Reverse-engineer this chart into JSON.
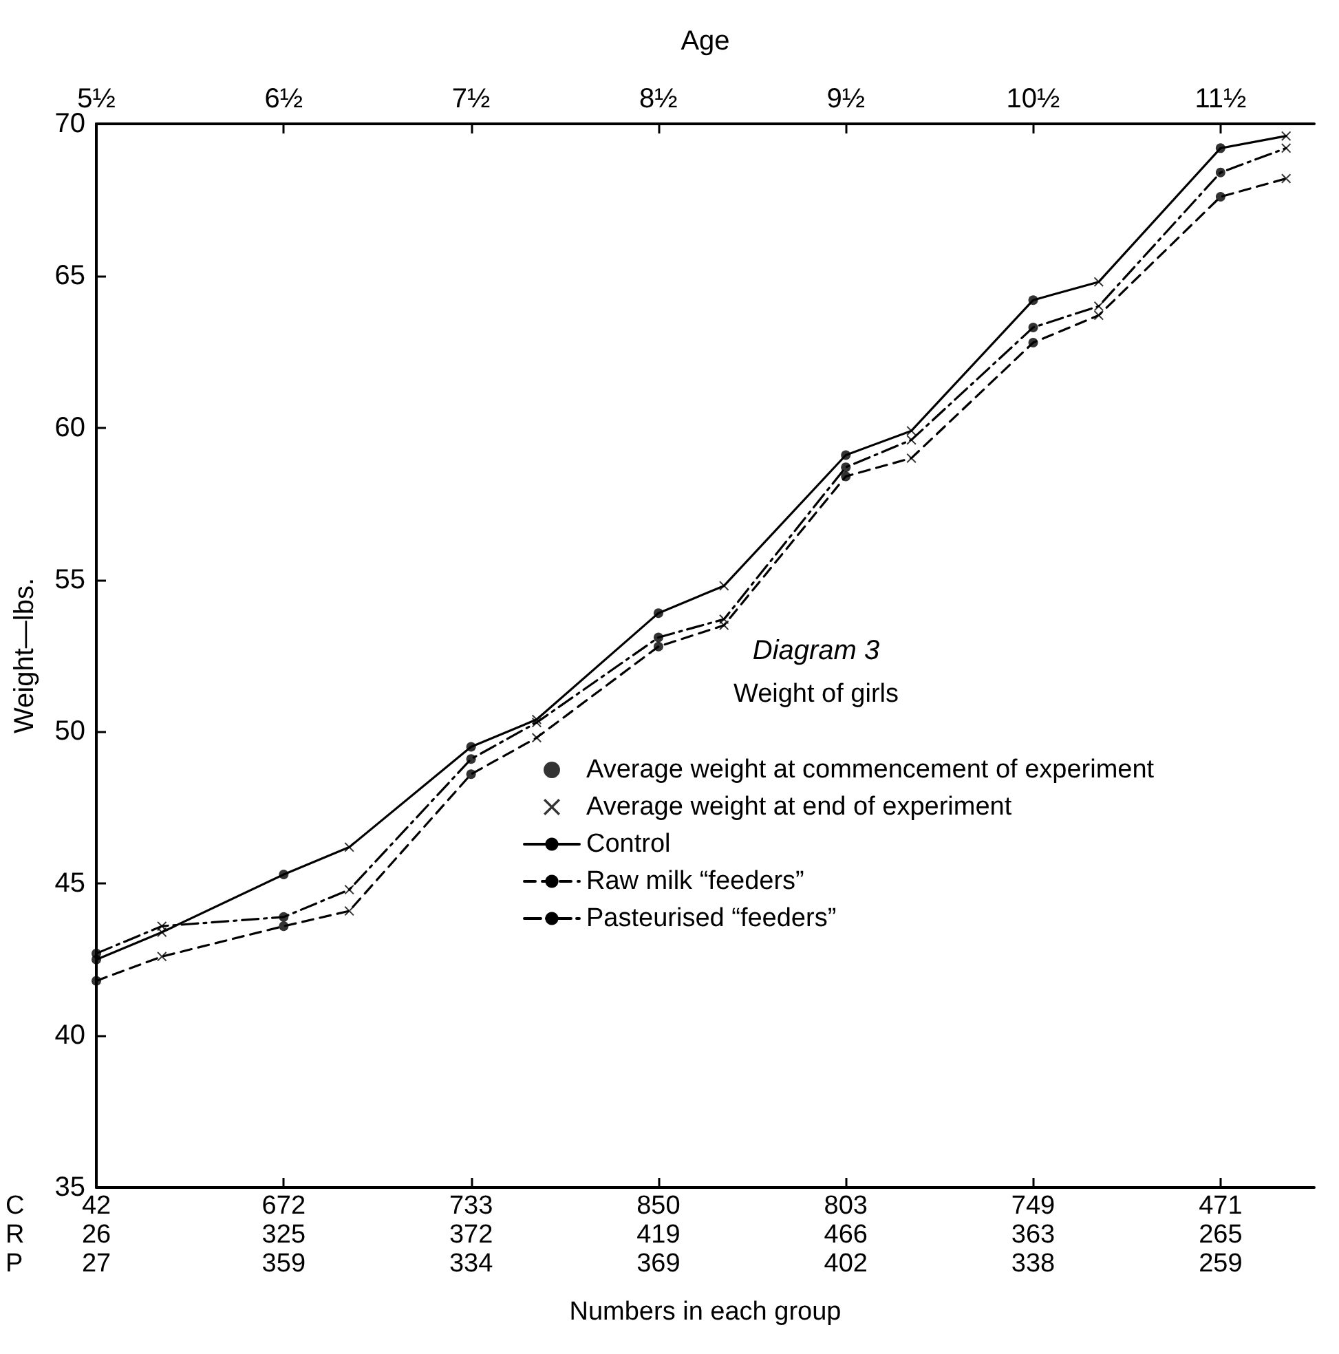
{
  "chart_data": {
    "type": "line",
    "title": "Diagram 3",
    "subtitle": "Weight of girls",
    "xlabel": "Age",
    "ylabel": "Weight—lbs.",
    "xlim": [
      5.5,
      12.0
    ],
    "xticks": [
      {
        "value": 5.5,
        "label": "5½"
      },
      {
        "value": 6.5,
        "label": "6½"
      },
      {
        "value": 7.5,
        "label": "7½"
      },
      {
        "value": 8.5,
        "label": "8½"
      },
      {
        "value": 9.5,
        "label": "9½"
      },
      {
        "value": 10.5,
        "label": "10½"
      },
      {
        "value": 11.5,
        "label": "11½"
      }
    ],
    "ylim": [
      35,
      70
    ],
    "yticks": [
      35,
      40,
      45,
      50,
      55,
      60,
      65,
      70
    ],
    "annotations": [
      "C 42 672 733 850 803 749 471",
      "R 26 325 372 419 466 363 265",
      "P 27 359 334 369 402 338 259",
      "Numbers in each group"
    ],
    "grid": false,
    "legend": "right",
    "series": [
      {
        "name": "Average weight at commencement of experiment",
        "type": "scatter",
        "marker": "circle",
        "color": "#000000",
        "x": [
          5.5,
          6.5,
          7.5,
          8.5,
          9.5,
          10.5,
          11.5,
          5.5,
          6.5,
          7.5,
          8.5,
          9.5,
          10.5,
          11.5,
          5.5,
          6.5,
          7.5,
          8.5,
          9.5,
          10.5,
          11.5
        ],
        "values": [
          42.5,
          45.3,
          49.5,
          53.9,
          59.1,
          64.2,
          69.2,
          41.8,
          43.6,
          48.6,
          52.8,
          58.4,
          62.8,
          67.6,
          42.7,
          43.9,
          49.1,
          53.1,
          58.7,
          63.3,
          68.4
        ]
      },
      {
        "name": "Average weight at end of experiment",
        "type": "scatter",
        "marker": "cross",
        "color": "#000000",
        "x": [
          5.85,
          6.85,
          7.85,
          8.85,
          9.85,
          10.85,
          11.85,
          5.85,
          6.85,
          7.85,
          8.85,
          9.85,
          10.85,
          11.85,
          5.85,
          6.85,
          7.85,
          8.85,
          9.85,
          10.85,
          11.85
        ],
        "values": [
          43.4,
          46.2,
          50.4,
          54.8,
          59.9,
          64.8,
          69.6,
          42.6,
          44.1,
          49.8,
          53.5,
          59.0,
          63.7,
          68.2,
          43.6,
          44.8,
          50.3,
          53.7,
          59.6,
          64.0,
          69.2
        ]
      },
      {
        "name": "Control",
        "marker": "none",
        "line_style": "solid",
        "color": "#000000",
        "x": [
          5.5,
          5.85,
          6.5,
          6.85,
          7.5,
          7.85,
          8.5,
          8.85,
          9.5,
          9.85,
          10.5,
          10.85,
          11.5,
          11.85
        ],
        "values": [
          42.5,
          43.4,
          45.3,
          46.2,
          49.5,
          50.4,
          53.9,
          54.8,
          59.1,
          59.9,
          64.2,
          64.8,
          69.2,
          69.6
        ]
      },
      {
        "name": "Raw milk “feeders”",
        "marker": "none",
        "line_style": "dashed",
        "color": "#000000",
        "x": [
          5.5,
          5.85,
          6.5,
          6.85,
          7.5,
          7.85,
          8.5,
          8.85,
          9.5,
          9.85,
          10.5,
          10.85,
          11.5,
          11.85
        ],
        "values": [
          41.8,
          42.6,
          43.6,
          44.1,
          48.6,
          49.8,
          52.8,
          53.5,
          58.4,
          59.0,
          62.8,
          63.7,
          67.6,
          68.2
        ]
      },
      {
        "name": "Pasteurised “feeders”",
        "marker": "none",
        "line_style": "dashdot",
        "color": "#000000",
        "x": [
          5.5,
          5.85,
          6.5,
          6.85,
          7.5,
          7.85,
          8.5,
          8.85,
          9.5,
          9.85,
          10.5,
          10.85,
          11.5,
          11.85
        ],
        "values": [
          42.7,
          43.6,
          43.9,
          44.8,
          49.1,
          50.3,
          53.1,
          53.7,
          58.7,
          59.6,
          63.3,
          64.0,
          68.4,
          69.2
        ]
      }
    ]
  }
}
